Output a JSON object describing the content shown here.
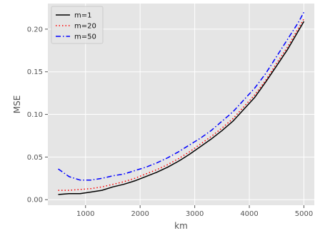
{
  "chart_data": {
    "type": "line",
    "title": "",
    "xlabel": "km",
    "ylabel": "MSE",
    "xlim": [
      310,
      5190
    ],
    "ylim": [
      -0.0065,
      0.23
    ],
    "xticks": [
      1000,
      2000,
      3000,
      4000,
      5000
    ],
    "yticks": [
      0.0,
      0.05,
      0.1,
      0.15,
      0.2
    ],
    "xtick_labels": [
      "1000",
      "2000",
      "3000",
      "4000",
      "5000"
    ],
    "ytick_labels": [
      "0.00",
      "0.05",
      "0.10",
      "0.15",
      "0.20"
    ],
    "grid": true,
    "background": "#E5E5E5",
    "legend_position": "top-left",
    "x": [
      500,
      700,
      900,
      1100,
      1300,
      1500,
      1700,
      1900,
      2100,
      2300,
      2500,
      2700,
      2900,
      3100,
      3300,
      3500,
      3700,
      3900,
      4100,
      4300,
      4500,
      4700,
      4900,
      5000
    ],
    "series": [
      {
        "name": "m=1",
        "color": "#000000",
        "dash": "solid",
        "values": [
          0.006,
          0.007,
          0.007,
          0.009,
          0.011,
          0.015,
          0.018,
          0.022,
          0.027,
          0.032,
          0.038,
          0.045,
          0.053,
          0.062,
          0.071,
          0.081,
          0.092,
          0.106,
          0.12,
          0.138,
          0.157,
          0.176,
          0.198,
          0.209
        ]
      },
      {
        "name": "m=20",
        "color": "#FF0000",
        "dash": "dotted",
        "values": [
          0.011,
          0.011,
          0.012,
          0.013,
          0.015,
          0.018,
          0.021,
          0.025,
          0.03,
          0.035,
          0.041,
          0.048,
          0.056,
          0.065,
          0.074,
          0.084,
          0.095,
          0.109,
          0.123,
          0.14,
          0.16,
          0.179,
          0.201,
          0.212
        ]
      },
      {
        "name": "m=50",
        "color": "#0000FF",
        "dash": "dashdot",
        "values": [
          0.036,
          0.027,
          0.023,
          0.023,
          0.025,
          0.028,
          0.03,
          0.034,
          0.038,
          0.043,
          0.049,
          0.056,
          0.064,
          0.072,
          0.081,
          0.092,
          0.103,
          0.117,
          0.131,
          0.148,
          0.168,
          0.188,
          0.208,
          0.22
        ]
      }
    ]
  }
}
